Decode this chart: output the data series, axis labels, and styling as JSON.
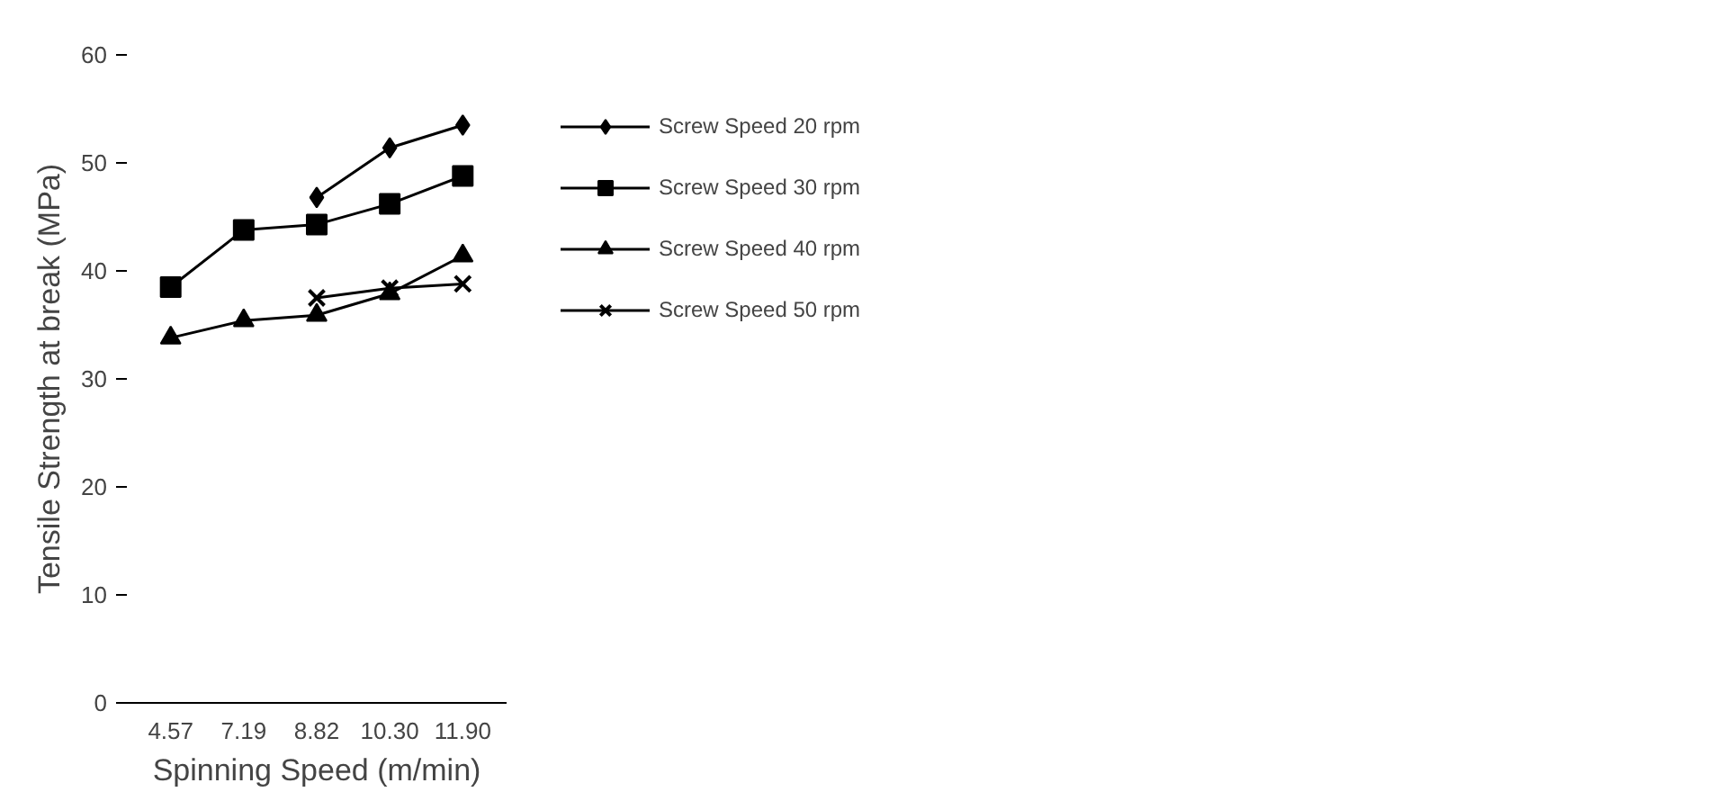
{
  "chart_data": {
    "type": "line",
    "xlabel": "Spinning Speed (m/min)",
    "ylabel": "Tensile Strength at break (MPa)",
    "categories": [
      "4.57",
      "7.19",
      "8.82",
      "10.30",
      "11.90"
    ],
    "ylim": [
      0,
      60
    ],
    "yticks": [
      0,
      10,
      20,
      30,
      40,
      50,
      60
    ],
    "grid": false,
    "legend": "right",
    "line_style": "solid",
    "series": [
      {
        "name": "Screw Speed 20 rpm",
        "color": "#000000",
        "marker": "diamond",
        "values": [
          null,
          null,
          46.8,
          51.4,
          53.5
        ]
      },
      {
        "name": "Screw Speed 30 rpm",
        "color": "#000000",
        "marker": "square",
        "values": [
          38.5,
          43.8,
          44.3,
          46.2,
          48.8
        ]
      },
      {
        "name": "Screw Speed 40 rpm",
        "color": "#000000",
        "marker": "triangle",
        "values": [
          33.8,
          35.4,
          35.9,
          37.9,
          41.4
        ]
      },
      {
        "name": "Screw Speed 50 rpm",
        "color": "#000000",
        "marker": "x",
        "values": [
          null,
          null,
          37.5,
          38.4,
          38.8
        ]
      }
    ]
  }
}
